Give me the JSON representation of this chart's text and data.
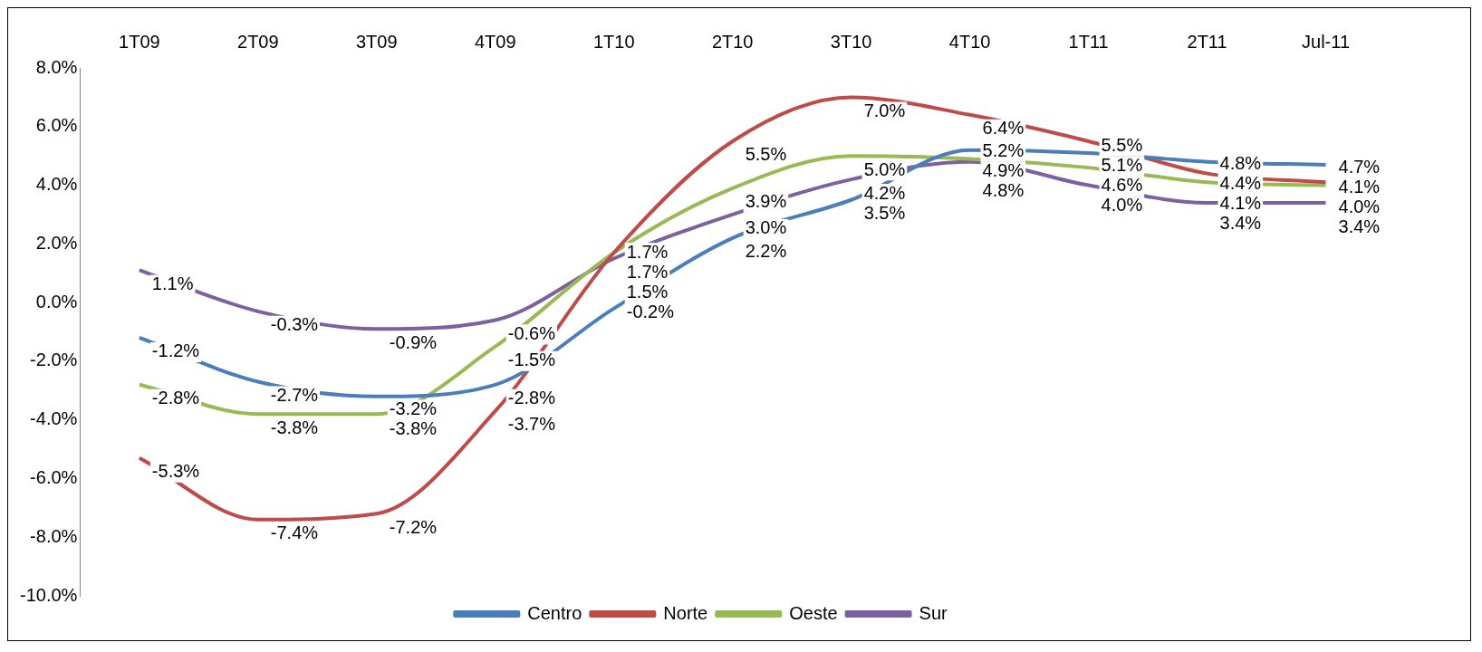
{
  "chart_data": {
    "type": "line",
    "categories": [
      "1T09",
      "2T09",
      "3T09",
      "4T09",
      "1T10",
      "2T10",
      "3T10",
      "4T10",
      "1T11",
      "2T11",
      "Jul-11"
    ],
    "series": [
      {
        "name": "Centro",
        "color": "#4a7ebb",
        "values": [
          -1.2,
          -2.7,
          -3.2,
          -2.8,
          -0.2,
          2.2,
          3.5,
          5.2,
          5.1,
          4.8,
          4.7
        ],
        "value_labels": [
          "-1.2%",
          "-2.7%",
          "-3.2%",
          "-2.8%",
          "-0.2%",
          "2.2%",
          "3.5%",
          "5.2%",
          "5.1%",
          "4.8%",
          "4.7%"
        ]
      },
      {
        "name": "Norte",
        "color": "#be4b48",
        "values": [
          -5.3,
          -7.4,
          -7.2,
          -3.7,
          1.7,
          5.5,
          7.0,
          6.4,
          5.5,
          4.4,
          4.1
        ],
        "value_labels": [
          "-5.3%",
          "-7.4%",
          "-7.2%",
          "-3.7%",
          "1.7%",
          "5.5%",
          "7.0%",
          "6.4%",
          "5.5%",
          "4.4%",
          "4.1%"
        ]
      },
      {
        "name": "Oeste",
        "color": "#98b954",
        "values": [
          -2.8,
          -3.8,
          -3.8,
          -1.5,
          1.7,
          3.9,
          5.0,
          4.9,
          4.6,
          4.1,
          4.0
        ],
        "value_labels": [
          "-2.8%",
          "-3.8%",
          "-3.8%",
          "-1.5%",
          "1.7%",
          "3.9%",
          "5.0%",
          "4.9%",
          "4.6%",
          "4.1%",
          "4.0%"
        ]
      },
      {
        "name": "Sur",
        "color": "#7d60a0",
        "values": [
          1.1,
          -0.3,
          -0.9,
          -0.6,
          1.5,
          3.0,
          4.2,
          4.8,
          4.0,
          3.4,
          3.4
        ],
        "value_labels": [
          "1.1%",
          "-0.3%",
          "-0.9%",
          "-0.6%",
          "1.5%",
          "3.0%",
          "4.2%",
          "4.8%",
          "4.0%",
          "3.4%",
          "3.4%"
        ]
      }
    ],
    "ylim": [
      -10,
      8
    ],
    "yticks": [
      {
        "value": -10,
        "label": "-10.0%"
      },
      {
        "value": -8,
        "label": "-8.0%"
      },
      {
        "value": -6,
        "label": "-6.0%"
      },
      {
        "value": -4,
        "label": "-4.0%"
      },
      {
        "value": -2,
        "label": "-2.0%"
      },
      {
        "value": 0,
        "label": "0.0%"
      },
      {
        "value": 2,
        "label": "2.0%"
      },
      {
        "value": 4,
        "label": "4.0%"
      },
      {
        "value": 6,
        "label": "6.0%"
      },
      {
        "value": 8,
        "label": "8.0%"
      }
    ],
    "grid": false,
    "legend": "bottom",
    "marker": "none",
    "line_style": "solid"
  }
}
